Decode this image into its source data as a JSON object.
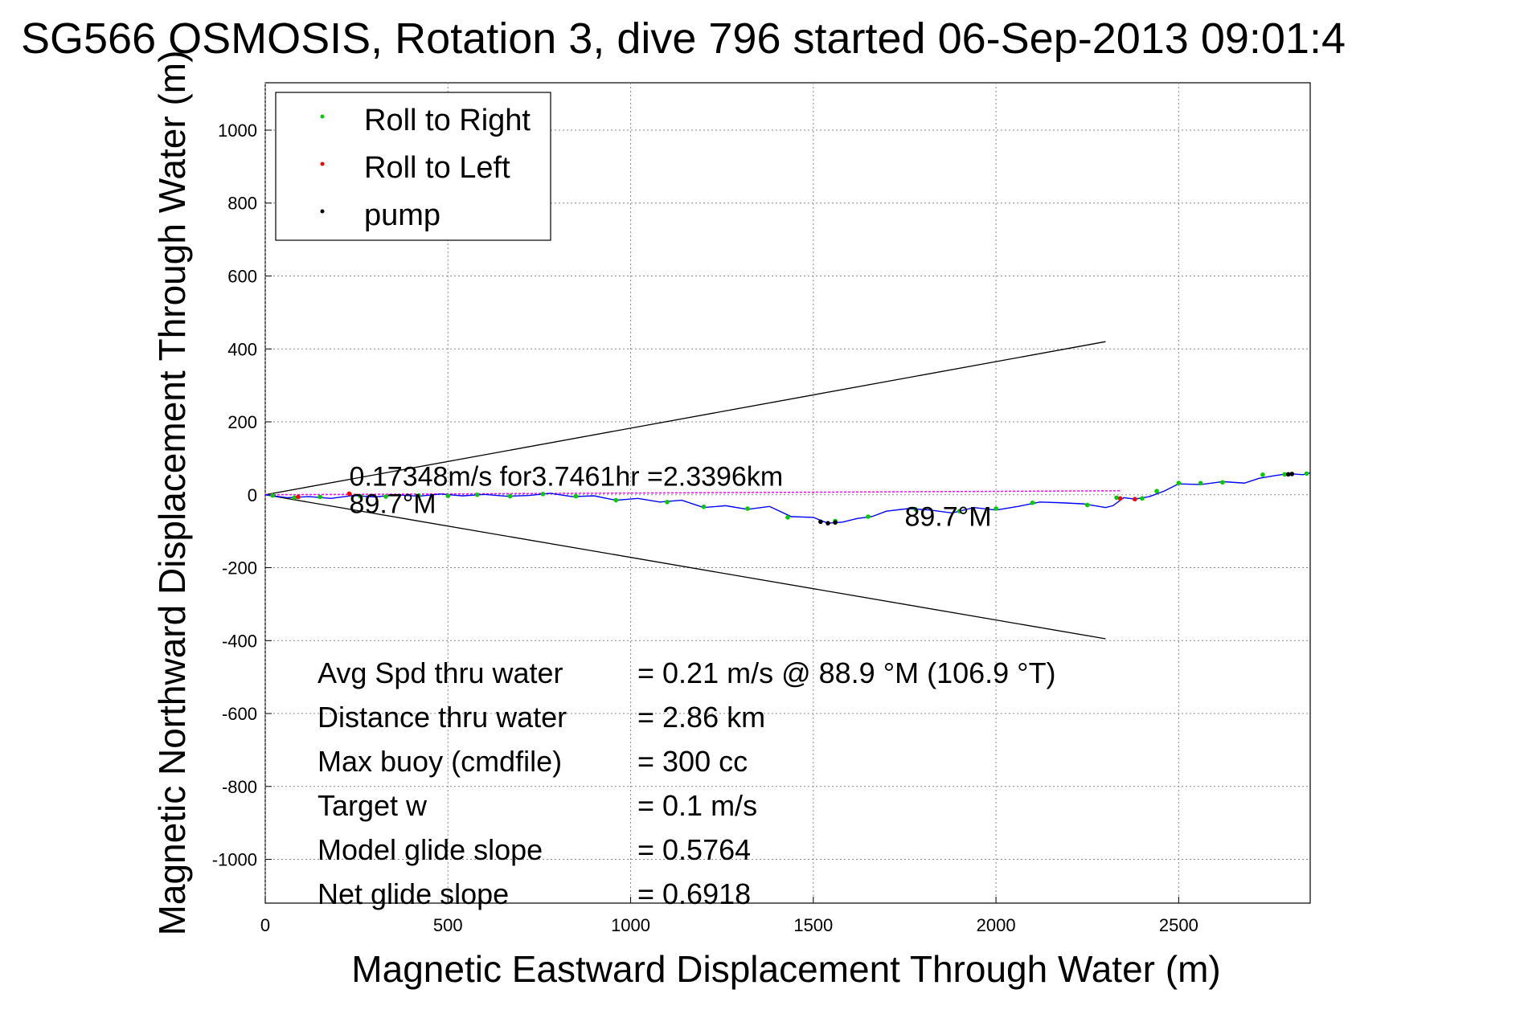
{
  "chart_data": {
    "type": "line",
    "title": "SG566 OSMOSIS, Rotation 3, dive 796 started 06-Sep-2013 09:01:4",
    "xlabel": "Magnetic Eastward Displacement Through Water (m)",
    "ylabel": "Magnetic Northward Displacement Through Water (m)",
    "xlim": [
      0,
      2860
    ],
    "ylim": [
      -1120,
      1130
    ],
    "xticks": [
      0,
      500,
      1000,
      1500,
      2000,
      2500
    ],
    "yticks": [
      1000,
      800,
      600,
      400,
      200,
      0,
      -200,
      -400,
      -600,
      -800,
      -1000
    ],
    "grid": true,
    "legend_position": "top-left",
    "colors": {
      "track": "#0000ff",
      "roll_right": "#00cc00",
      "roll_left": "#ff0000",
      "pump": "#000000",
      "current_vector": "#ff00ff",
      "cone": "#000000",
      "grid": "#888888"
    },
    "legend": [
      {
        "label": "Roll to Right",
        "color": "#00cc00"
      },
      {
        "label": "Roll to Left",
        "color": "#ff0000"
      },
      {
        "label": "pump",
        "color": "#000000"
      }
    ],
    "track": {
      "x": [
        0,
        60,
        120,
        180,
        240,
        300,
        360,
        420,
        480,
        540,
        600,
        660,
        720,
        780,
        840,
        900,
        960,
        1020,
        1080,
        1140,
        1200,
        1260,
        1320,
        1380,
        1440,
        1500,
        1540,
        1580,
        1620,
        1660,
        1700,
        1760,
        1820,
        1880,
        1940,
        2000,
        2060,
        2120,
        2180,
        2240,
        2300,
        2320,
        2350,
        2380,
        2420,
        2460,
        2500,
        2560,
        2620,
        2680,
        2720,
        2760,
        2800,
        2840,
        2860
      ],
      "y": [
        0,
        -8,
        -5,
        -10,
        -2,
        -6,
        0,
        -4,
        2,
        -3,
        1,
        -4,
        -2,
        4,
        -5,
        -3,
        -15,
        -10,
        -20,
        -15,
        -35,
        -30,
        -40,
        -32,
        -60,
        -62,
        -78,
        -75,
        -65,
        -60,
        -45,
        -38,
        -42,
        -50,
        -35,
        -42,
        -32,
        -20,
        -22,
        -25,
        -35,
        -30,
        -8,
        -12,
        -5,
        10,
        30,
        28,
        36,
        32,
        45,
        52,
        58,
        55,
        60
      ]
    },
    "roll_right": {
      "x": [
        20,
        80,
        150,
        260,
        330,
        420,
        500,
        580,
        670,
        760,
        850,
        960,
        1100,
        1200,
        1320,
        1430,
        1560,
        1650,
        1780,
        1900,
        2000,
        2100,
        2250,
        2330,
        2400,
        2440,
        2500,
        2560,
        2620,
        2730,
        2790,
        2850
      ],
      "y": [
        -2,
        -8,
        -6,
        -4,
        -5,
        -2,
        -3,
        0,
        -4,
        2,
        -4,
        -15,
        -20,
        -33,
        -38,
        -62,
        -72,
        -60,
        -40,
        -45,
        -38,
        -22,
        -28,
        -8,
        -10,
        10,
        32,
        32,
        34,
        55,
        56,
        58
      ]
    },
    "roll_left": {
      "x": [
        90,
        230,
        2340,
        2380
      ],
      "y": [
        -6,
        3,
        -10,
        -12
      ]
    },
    "pump": {
      "x": [
        1520,
        1540,
        1560,
        2800,
        2810
      ],
      "y": [
        -74,
        -78,
        -76,
        56,
        57
      ]
    },
    "current_vector": {
      "x": [
        0,
        2340
      ],
      "y": [
        0,
        11
      ]
    },
    "cone_lines": [
      {
        "x": [
          0,
          2300
        ],
        "y": [
          0,
          420
        ]
      },
      {
        "x": [
          0,
          2300
        ],
        "y": [
          0,
          -395
        ]
      }
    ],
    "annotations": [
      {
        "text": "0.17348m/s for3.7461hr =2.3396km",
        "x": 230,
        "y": 25
      },
      {
        "text": "89.7°M",
        "x": 230,
        "y": -50
      },
      {
        "text": "89.7°M",
        "x": 1750,
        "y": -85
      }
    ],
    "stats": [
      {
        "label": "Avg Spd thru water",
        "value": "=  0.21 m/s @  88.9 °M (106.9 °T)"
      },
      {
        "label": "Distance thru water",
        "value": "=  2.86 km"
      },
      {
        "label": "Max buoy (cmdfile)",
        "value": "= 300 cc"
      },
      {
        "label": "Target w",
        "value": "= 0.1 m/s"
      },
      {
        "label": "Model glide slope",
        "value": "= 0.5764"
      },
      {
        "label": "Net glide slope",
        "value": "= 0.6918"
      }
    ]
  }
}
